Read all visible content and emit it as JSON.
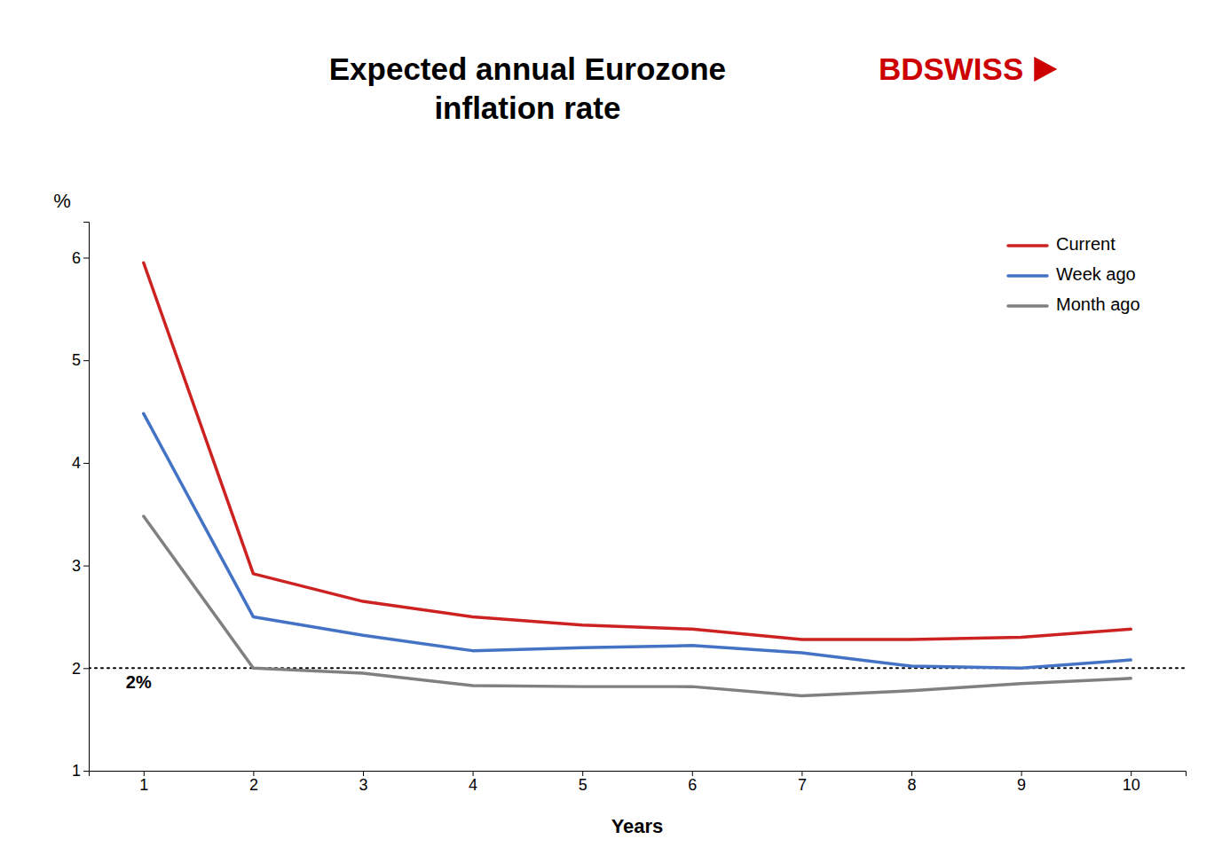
{
  "chart_data": {
    "type": "line",
    "title": "Expected annual Eurozone\ninflation rate",
    "x_label": "Years",
    "y_label": "%",
    "x": [
      1,
      2,
      3,
      4,
      5,
      6,
      7,
      8,
      9,
      10
    ],
    "series": [
      {
        "name": "Current",
        "color": "#cc2222",
        "values": [
          5.95,
          2.92,
          2.65,
          2.5,
          2.42,
          2.38,
          2.28,
          2.28,
          2.3,
          2.38
        ]
      },
      {
        "name": "Week ago",
        "color": "#4472c4",
        "values": [
          4.48,
          2.5,
          2.32,
          2.17,
          2.2,
          2.22,
          2.15,
          2.02,
          2.0,
          2.08
        ]
      },
      {
        "name": "Month ago",
        "color": "#808080",
        "values": [
          3.48,
          2.0,
          1.95,
          1.83,
          1.82,
          1.82,
          1.73,
          1.78,
          1.85,
          1.9
        ]
      }
    ],
    "xlim": [
      0.5,
      10.5
    ],
    "ylim": [
      1.0,
      6.35
    ],
    "xticks": [
      1,
      2,
      3,
      4,
      5,
      6,
      7,
      8,
      9,
      10
    ],
    "yticks": [
      1,
      2,
      3,
      4,
      5,
      6
    ],
    "annotations": [
      {
        "type": "hline",
        "y": 2.0,
        "label": "2%",
        "line_style": "dotted",
        "color": "#000000"
      },
      {
        "text": "BD",
        "color": "#cc0000"
      },
      {
        "text": "SWISS",
        "color": "#cc0000"
      }
    ],
    "grid": false,
    "legend": "upper right"
  }
}
